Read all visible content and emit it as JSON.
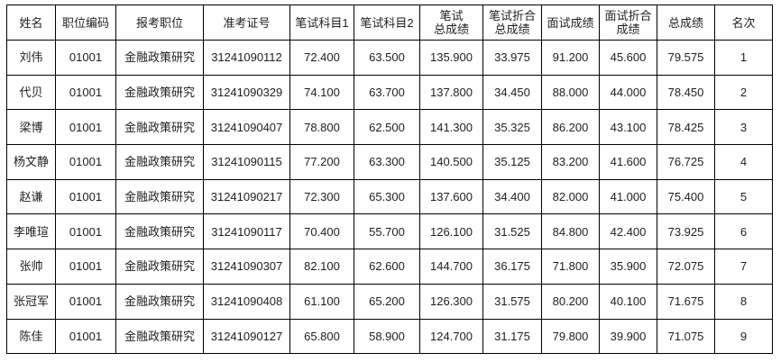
{
  "headers": [
    "姓名",
    "职位编码",
    "报考职位",
    "准考证号",
    "笔试科目1",
    "笔试科目2",
    "笔试\n总成绩",
    "笔试折合\n总成绩",
    "面试成绩",
    "面试折合\n成绩",
    "总成绩",
    "名次"
  ],
  "rows": [
    [
      "刘伟",
      "01001",
      "金融政策研究",
      "31241090112",
      "72.400",
      "63.500",
      "135.900",
      "33.975",
      "91.200",
      "45.600",
      "79.575",
      "1"
    ],
    [
      "代贝",
      "01001",
      "金融政策研究",
      "31241090329",
      "74.100",
      "63.700",
      "137.800",
      "34.450",
      "88.000",
      "44.000",
      "78.450",
      "2"
    ],
    [
      "梁博",
      "01001",
      "金融政策研究",
      "31241090407",
      "78.800",
      "62.500",
      "141.300",
      "35.325",
      "86.200",
      "43.100",
      "78.425",
      "3"
    ],
    [
      "杨文静",
      "01001",
      "金融政策研究",
      "31241090115",
      "77.200",
      "63.300",
      "140.500",
      "35.125",
      "83.200",
      "41.600",
      "76.725",
      "4"
    ],
    [
      "赵谦",
      "01001",
      "金融政策研究",
      "31241090217",
      "72.300",
      "65.300",
      "137.600",
      "34.400",
      "82.000",
      "41.000",
      "75.400",
      "5"
    ],
    [
      "李唯瑄",
      "01001",
      "金融政策研究",
      "31241090117",
      "70.400",
      "55.700",
      "126.100",
      "31.525",
      "84.800",
      "42.400",
      "73.925",
      "6"
    ],
    [
      "张帅",
      "01001",
      "金融政策研究",
      "31241090307",
      "82.100",
      "62.600",
      "144.700",
      "36.175",
      "71.800",
      "35.900",
      "72.075",
      "7"
    ],
    [
      "张冠军",
      "01001",
      "金融政策研究",
      "31241090408",
      "61.100",
      "65.200",
      "126.300",
      "31.575",
      "80.200",
      "40.100",
      "71.675",
      "8"
    ],
    [
      "陈佳",
      "01001",
      "金融政策研究",
      "31241090127",
      "65.800",
      "58.900",
      "124.700",
      "31.175",
      "79.800",
      "39.900",
      "71.075",
      "9"
    ]
  ]
}
